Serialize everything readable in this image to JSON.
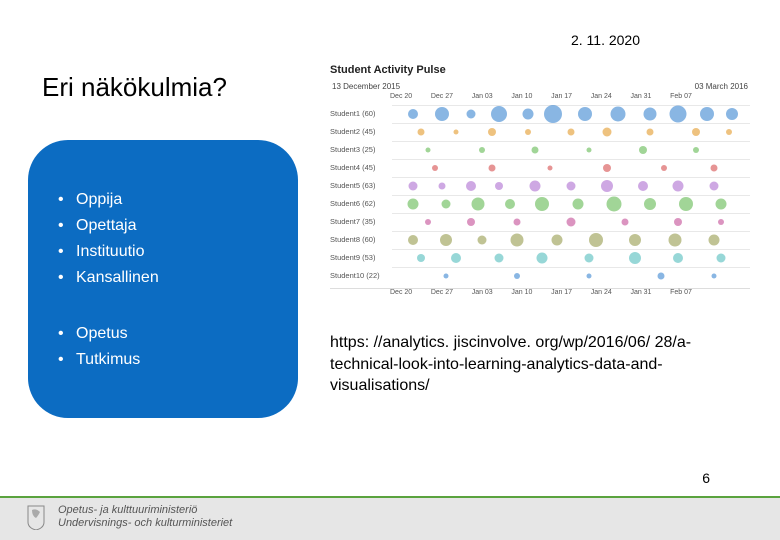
{
  "date": "2. 11. 2020",
  "title": "Eri näkökulmia?",
  "box": {
    "background": "#0c6cc2",
    "text_color": "#ffffff",
    "list1": [
      "Oppija",
      "Opettaja",
      "Instituutio",
      "Kansallinen"
    ],
    "list2": [
      "Opetus",
      "Tutkimus"
    ]
  },
  "chart": {
    "title": "Student Activity Pulse",
    "date_left": "13 December 2015",
    "date_right": "03 March 2016",
    "ticks": [
      "Dec 20",
      "Dec 27",
      "Jan 03",
      "Jan 10",
      "Jan 17",
      "Jan 24",
      "Jan 31",
      "Feb 07"
    ],
    "rows": [
      {
        "label": "Student1 (60)",
        "color": "#4a8fd4",
        "dots": [
          {
            "x": 6,
            "s": 10
          },
          {
            "x": 14,
            "s": 14
          },
          {
            "x": 22,
            "s": 9
          },
          {
            "x": 30,
            "s": 16
          },
          {
            "x": 38,
            "s": 11
          },
          {
            "x": 45,
            "s": 18
          },
          {
            "x": 54,
            "s": 14
          },
          {
            "x": 63,
            "s": 15
          },
          {
            "x": 72,
            "s": 13
          },
          {
            "x": 80,
            "s": 17
          },
          {
            "x": 88,
            "s": 14
          },
          {
            "x": 95,
            "s": 12
          }
        ]
      },
      {
        "label": "Student2 (45)",
        "color": "#e5a13a",
        "dots": [
          {
            "x": 8,
            "s": 7
          },
          {
            "x": 18,
            "s": 5
          },
          {
            "x": 28,
            "s": 8
          },
          {
            "x": 38,
            "s": 6
          },
          {
            "x": 50,
            "s": 7
          },
          {
            "x": 60,
            "s": 9
          },
          {
            "x": 72,
            "s": 7
          },
          {
            "x": 85,
            "s": 8
          },
          {
            "x": 94,
            "s": 6
          }
        ]
      },
      {
        "label": "Student3 (25)",
        "color": "#6fbf5f",
        "dots": [
          {
            "x": 10,
            "s": 5
          },
          {
            "x": 25,
            "s": 6
          },
          {
            "x": 40,
            "s": 7
          },
          {
            "x": 55,
            "s": 5
          },
          {
            "x": 70,
            "s": 8
          },
          {
            "x": 85,
            "s": 6
          }
        ]
      },
      {
        "label": "Student4 (45)",
        "color": "#d85a5a",
        "dots": [
          {
            "x": 12,
            "s": 6
          },
          {
            "x": 28,
            "s": 7
          },
          {
            "x": 44,
            "s": 5
          },
          {
            "x": 60,
            "s": 8
          },
          {
            "x": 76,
            "s": 6
          },
          {
            "x": 90,
            "s": 7
          }
        ]
      },
      {
        "label": "Student5 (63)",
        "color": "#b37ad4",
        "dots": [
          {
            "x": 6,
            "s": 9
          },
          {
            "x": 14,
            "s": 7
          },
          {
            "x": 22,
            "s": 10
          },
          {
            "x": 30,
            "s": 8
          },
          {
            "x": 40,
            "s": 11
          },
          {
            "x": 50,
            "s": 9
          },
          {
            "x": 60,
            "s": 12
          },
          {
            "x": 70,
            "s": 10
          },
          {
            "x": 80,
            "s": 11
          },
          {
            "x": 90,
            "s": 9
          }
        ]
      },
      {
        "label": "Student6 (62)",
        "color": "#6fbf5f",
        "dots": [
          {
            "x": 6,
            "s": 11
          },
          {
            "x": 15,
            "s": 9
          },
          {
            "x": 24,
            "s": 13
          },
          {
            "x": 33,
            "s": 10
          },
          {
            "x": 42,
            "s": 14
          },
          {
            "x": 52,
            "s": 11
          },
          {
            "x": 62,
            "s": 15
          },
          {
            "x": 72,
            "s": 12
          },
          {
            "x": 82,
            "s": 14
          },
          {
            "x": 92,
            "s": 11
          }
        ]
      },
      {
        "label": "Student7 (35)",
        "color": "#c75a9e",
        "dots": [
          {
            "x": 10,
            "s": 6
          },
          {
            "x": 22,
            "s": 8
          },
          {
            "x": 35,
            "s": 7
          },
          {
            "x": 50,
            "s": 9
          },
          {
            "x": 65,
            "s": 7
          },
          {
            "x": 80,
            "s": 8
          },
          {
            "x": 92,
            "s": 6
          }
        ]
      },
      {
        "label": "Student8 (60)",
        "color": "#9ea35a",
        "dots": [
          {
            "x": 6,
            "s": 10
          },
          {
            "x": 15,
            "s": 12
          },
          {
            "x": 25,
            "s": 9
          },
          {
            "x": 35,
            "s": 13
          },
          {
            "x": 46,
            "s": 11
          },
          {
            "x": 57,
            "s": 14
          },
          {
            "x": 68,
            "s": 12
          },
          {
            "x": 79,
            "s": 13
          },
          {
            "x": 90,
            "s": 11
          }
        ]
      },
      {
        "label": "Student9 (53)",
        "color": "#5fc2c2",
        "dots": [
          {
            "x": 8,
            "s": 8
          },
          {
            "x": 18,
            "s": 10
          },
          {
            "x": 30,
            "s": 9
          },
          {
            "x": 42,
            "s": 11
          },
          {
            "x": 55,
            "s": 9
          },
          {
            "x": 68,
            "s": 12
          },
          {
            "x": 80,
            "s": 10
          },
          {
            "x": 92,
            "s": 9
          }
        ]
      },
      {
        "label": "Student10 (22)",
        "color": "#4a8fd4",
        "dots": [
          {
            "x": 15,
            "s": 5
          },
          {
            "x": 35,
            "s": 6
          },
          {
            "x": 55,
            "s": 5
          },
          {
            "x": 75,
            "s": 7
          },
          {
            "x": 90,
            "s": 5
          }
        ]
      }
    ]
  },
  "url": "https: //analytics. jiscinvolve. org/wp/2016/06/ 28/a-technical-look-into-learning-analytics-data-and-visualisations/",
  "footer": {
    "line1": "Opetus- ja kulttuuriministeriö",
    "line2": "Undervisnings- och kulturministeriet",
    "accent": "#5aa33e",
    "bg": "#e6e6e6"
  },
  "page": "6"
}
